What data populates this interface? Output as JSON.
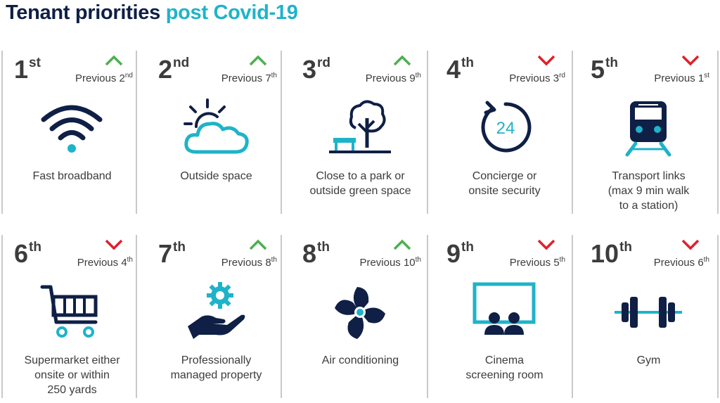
{
  "title": {
    "part1": "Tenant priorities",
    "part2": "post Covid-19"
  },
  "colors": {
    "navy": "#0f1f45",
    "teal": "#1fb3c9",
    "up": "#4caf50",
    "down": "#e0202a"
  },
  "prefix": "Previous",
  "items": [
    {
      "rank": "1",
      "rank_suffix": "st",
      "prev_num": "2",
      "prev_suffix": "nd",
      "trend": "up",
      "icon": "wifi-icon",
      "label": "Fast broadband"
    },
    {
      "rank": "2",
      "rank_suffix": "nd",
      "prev_num": "7",
      "prev_suffix": "th",
      "trend": "up",
      "icon": "sun-cloud-icon",
      "label": "Outside space"
    },
    {
      "rank": "3",
      "rank_suffix": "rd",
      "prev_num": "9",
      "prev_suffix": "th",
      "trend": "up",
      "icon": "park-tree-icon",
      "label": "Close to a park or\noutside green space"
    },
    {
      "rank": "4",
      "rank_suffix": "th",
      "prev_num": "3",
      "prev_suffix": "rd",
      "trend": "down",
      "icon": "clock-24-icon",
      "icon_text": "24",
      "label": "Concierge or\nonsite security"
    },
    {
      "rank": "5",
      "rank_suffix": "th",
      "prev_num": "1",
      "prev_suffix": "st",
      "trend": "down",
      "icon": "train-icon",
      "label": "Transport links\n(max 9 min walk\nto a station)"
    },
    {
      "rank": "6",
      "rank_suffix": "th",
      "prev_num": "4",
      "prev_suffix": "th",
      "trend": "down",
      "icon": "shopping-cart-icon",
      "label": "Supermarket either\nonsite or within\n250 yards"
    },
    {
      "rank": "7",
      "rank_suffix": "th",
      "prev_num": "8",
      "prev_suffix": "th",
      "trend": "up",
      "icon": "hand-gear-icon",
      "label": "Professionally\nmanaged property"
    },
    {
      "rank": "8",
      "rank_suffix": "th",
      "prev_num": "10",
      "prev_suffix": "th",
      "trend": "up",
      "icon": "fan-icon",
      "label": "Air conditioning"
    },
    {
      "rank": "9",
      "rank_suffix": "th",
      "prev_num": "5",
      "prev_suffix": "th",
      "trend": "down",
      "icon": "cinema-icon",
      "label": "Cinema\nscreening room"
    },
    {
      "rank": "10",
      "rank_suffix": "th",
      "prev_num": "6",
      "prev_suffix": "th",
      "trend": "down",
      "icon": "dumbbell-icon",
      "label": "Gym"
    }
  ]
}
